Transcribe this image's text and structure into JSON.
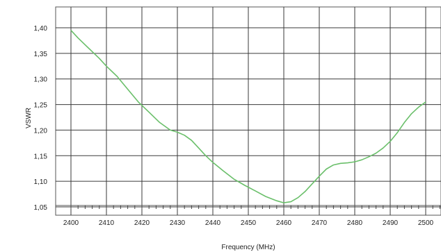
{
  "chart_data": {
    "type": "line",
    "title": "",
    "xlabel": "Frequency (MHz)",
    "ylabel": "VSWR",
    "xlim": [
      2395,
      2505
    ],
    "ylim": [
      1.03,
      1.43
    ],
    "x_ticks": [
      2400,
      2410,
      2420,
      2430,
      2440,
      2450,
      2460,
      2470,
      2480,
      2490,
      2500
    ],
    "x_tick_labels": [
      "2400",
      "2410",
      "2420",
      "2430",
      "2440",
      "2450",
      "2460",
      "2470",
      "2480",
      "2490",
      "2500"
    ],
    "y_ticks": [
      1.05,
      1.1,
      1.15,
      1.2,
      1.25,
      1.3,
      1.35,
      1.4
    ],
    "y_tick_labels": [
      "1,05",
      "1,10",
      "1,15",
      "1,20",
      "1,25",
      "1,30",
      "1,35",
      "1,40"
    ],
    "grid": true,
    "legend": "none",
    "series": [
      {
        "color": "#6abf6a",
        "x": [
          2400,
          2402,
          2405,
          2408,
          2410,
          2413,
          2416,
          2419,
          2422,
          2425,
          2428,
          2430,
          2432,
          2434,
          2436,
          2438,
          2440,
          2443,
          2446,
          2449,
          2452,
          2455,
          2458,
          2460,
          2462,
          2464,
          2466,
          2468,
          2470,
          2472,
          2474,
          2476,
          2478,
          2480,
          2482,
          2484,
          2486,
          2488,
          2490,
          2492,
          2494,
          2496,
          2498,
          2500
        ],
        "y": [
          1.395,
          1.38,
          1.36,
          1.34,
          1.325,
          1.305,
          1.28,
          1.255,
          1.235,
          1.215,
          1.2,
          1.196,
          1.19,
          1.18,
          1.165,
          1.15,
          1.137,
          1.12,
          1.104,
          1.092,
          1.081,
          1.07,
          1.062,
          1.058,
          1.06,
          1.068,
          1.08,
          1.095,
          1.11,
          1.124,
          1.132,
          1.135,
          1.136,
          1.138,
          1.142,
          1.148,
          1.155,
          1.165,
          1.178,
          1.195,
          1.215,
          1.232,
          1.245,
          1.255
        ]
      }
    ]
  }
}
